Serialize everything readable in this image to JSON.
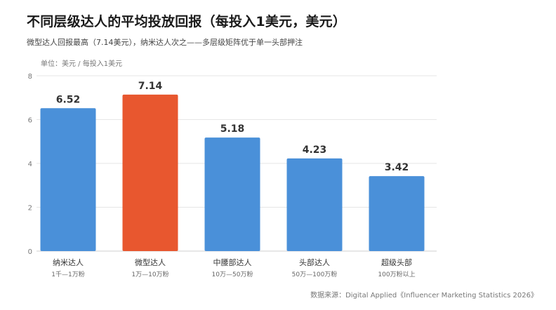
{
  "header": {
    "title": "不同层级达人的平均投放回报（每投入1美元，美元）",
    "subtitle": "微型达人回报最高（7.14美元），纳米达人次之——多层级矩阵优于单一头部押注",
    "unit": "单位：美元 / 每投入1美元"
  },
  "footer": {
    "source": "数据来源：Digital Applied《Influencer Marketing Statistics 2026》"
  },
  "colors": {
    "bar": "#4a90d9",
    "highlight": "#e8572f",
    "grid": "#e6e6e6",
    "axis_text": "#777777"
  },
  "chart_data": {
    "type": "bar",
    "categories": [
      "纳米达人",
      "微型达人",
      "中腰部达人",
      "头部达人",
      "超级头部"
    ],
    "sublabels": [
      "1千—1万粉",
      "1万—10万粉",
      "10万—50万粉",
      "50万—100万粉",
      "100万粉以上"
    ],
    "values": [
      6.52,
      7.14,
      5.18,
      4.23,
      3.42
    ],
    "value_labels": [
      "6.52",
      "7.14",
      "5.18",
      "4.23",
      "3.42"
    ],
    "highlight_index": 1,
    "yticks": [
      "0",
      "2",
      "4",
      "6",
      "8"
    ],
    "ylim": [
      0,
      8
    ],
    "grid": true,
    "legend": false
  }
}
